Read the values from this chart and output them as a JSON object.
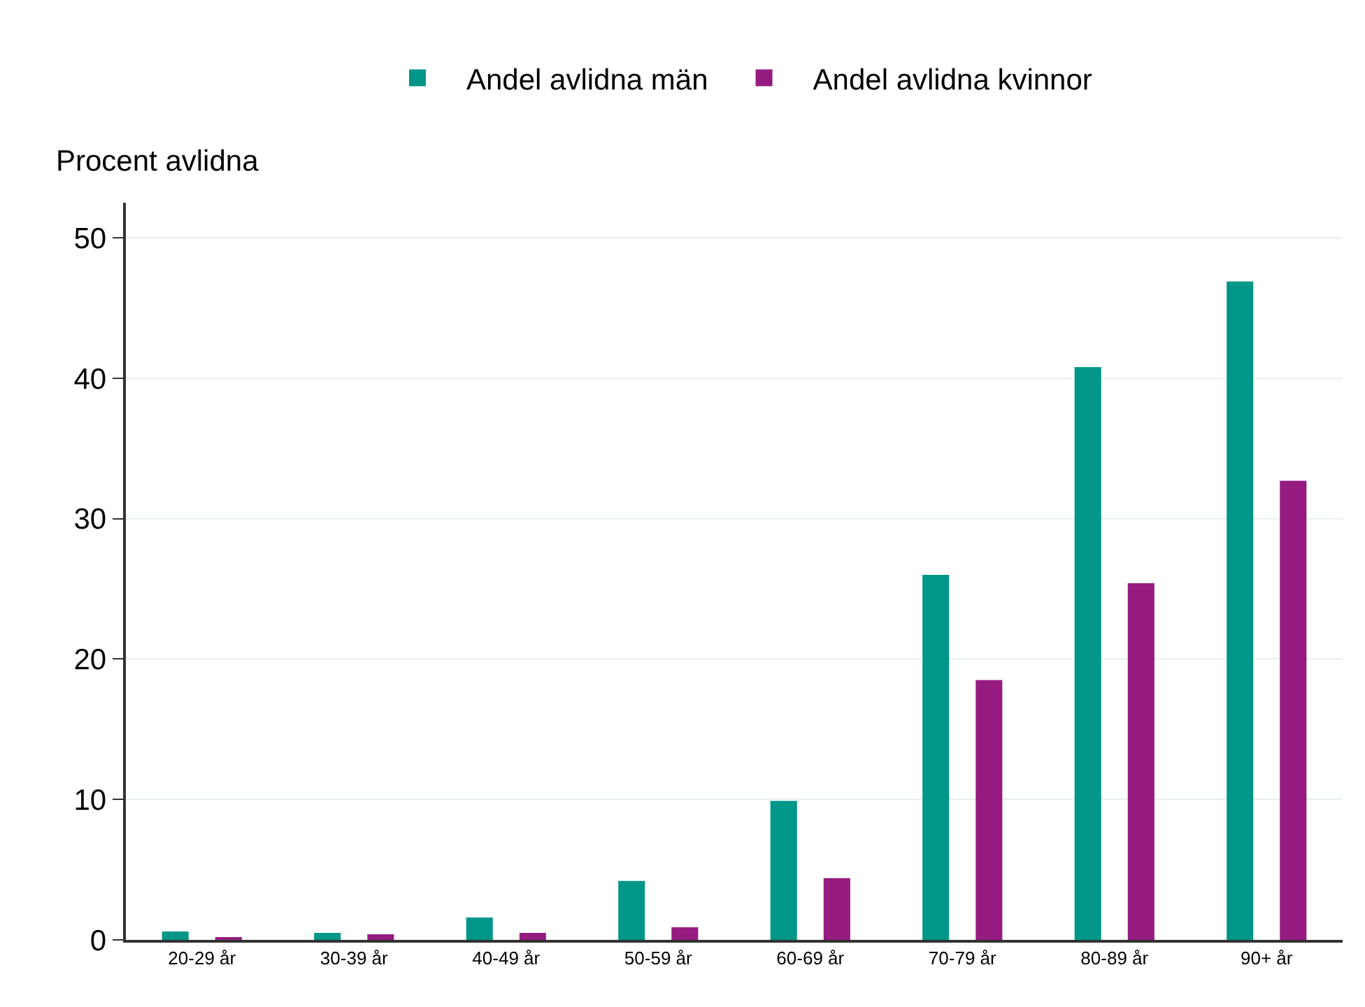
{
  "chart_data": {
    "type": "bar",
    "ylabel": "Procent avlidna",
    "categories": [
      "20-29 år",
      "30-39 år",
      "40-49 år",
      "50-59 år",
      "60-69 år",
      "70-79 år",
      "80-89 år",
      "90+ år"
    ],
    "series": [
      {
        "name": "Andel avlidna män",
        "color": "#009688",
        "values": [
          0.6,
          0.5,
          1.6,
          4.2,
          9.9,
          26.0,
          40.8,
          46.9
        ]
      },
      {
        "name": "Andel avlidna kvinnor",
        "color": "#951b81",
        "values": [
          0.2,
          0.4,
          0.5,
          0.9,
          4.4,
          18.5,
          25.4,
          32.7
        ]
      }
    ],
    "ylim": [
      0,
      52.5
    ],
    "yticks": [
      0,
      10,
      20,
      30,
      40,
      50
    ],
    "grid": "y",
    "legend": "top"
  }
}
